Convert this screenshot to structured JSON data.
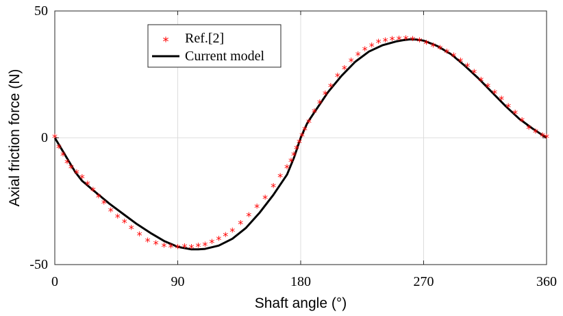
{
  "chart_data": {
    "type": "line",
    "title": "",
    "xlabel": "Shaft angle (°)",
    "ylabel": "Axial friction force (N)",
    "xlim": [
      0,
      360
    ],
    "ylim": [
      -50,
      50
    ],
    "xticks": [
      0,
      90,
      180,
      270,
      360
    ],
    "yticks": [
      -50,
      0,
      50
    ],
    "xtick_labels": [
      "0",
      "90",
      "180",
      "270",
      "360"
    ],
    "ytick_labels": [
      "-50",
      "0",
      "50"
    ],
    "grid": true,
    "legend": {
      "position": "top-left"
    },
    "series": [
      {
        "name": "Ref.[2]",
        "style": "markers",
        "marker": "*",
        "color": "#ff0000",
        "x": [
          0,
          3,
          6,
          9,
          12,
          16,
          20,
          24,
          28,
          32,
          36,
          41,
          46,
          51,
          56,
          62,
          68,
          74,
          80,
          85,
          90,
          95,
          100,
          105,
          110,
          115,
          120,
          125,
          130,
          136,
          142,
          148,
          154,
          160,
          165,
          170,
          173,
          175,
          177,
          179,
          181,
          183,
          186,
          190,
          194,
          198,
          202,
          207,
          212,
          217,
          222,
          227,
          232,
          237,
          242,
          247,
          252,
          257,
          262,
          267,
          272,
          277,
          282,
          287,
          292,
          297,
          302,
          307,
          312,
          317,
          322,
          327,
          332,
          337,
          342,
          347,
          352,
          357,
          360
        ],
        "y": [
          0,
          -4,
          -7,
          -10,
          -12,
          -14,
          -16,
          -18.5,
          -21,
          -23.5,
          -26,
          -29,
          -31.5,
          -33.5,
          -36,
          -38.5,
          -41,
          -42,
          -43,
          -43.2,
          -43.5,
          -43.3,
          -43.5,
          -43,
          -42.5,
          -41.5,
          -40.3,
          -38.8,
          -37,
          -34,
          -31,
          -27.5,
          -24,
          -19.5,
          -15.5,
          -12,
          -9.5,
          -7,
          -4.5,
          -2,
          0.5,
          3,
          6,
          10,
          13.5,
          17,
          20,
          24,
          27,
          30,
          32.5,
          34.5,
          36,
          37.5,
          38,
          38.5,
          38.7,
          38.8,
          38.5,
          38,
          37,
          36,
          35,
          33.5,
          32,
          30,
          28,
          25.5,
          22.5,
          20,
          17.5,
          15,
          12,
          9.5,
          6.5,
          3.5,
          2,
          0.5,
          0
        ]
      },
      {
        "name": "Current model",
        "style": "line",
        "color": "#000000",
        "x": [
          0,
          5,
          10,
          15,
          20,
          30,
          40,
          50,
          60,
          70,
          80,
          90,
          100,
          105,
          110,
          120,
          130,
          140,
          150,
          160,
          170,
          175,
          180,
          185,
          190,
          200,
          210,
          220,
          230,
          240,
          250,
          255,
          260,
          265,
          270,
          280,
          290,
          300,
          310,
          320,
          330,
          340,
          350,
          360
        ],
        "y": [
          0,
          -4.5,
          -9,
          -13.5,
          -17,
          -21.5,
          -26,
          -30,
          -34,
          -37.5,
          -40.7,
          -43,
          -44,
          -44,
          -43.8,
          -42.5,
          -39.8,
          -35.5,
          -29.5,
          -22.5,
          -14.5,
          -8,
          0,
          6,
          10,
          18,
          24.5,
          30,
          34,
          36.5,
          38,
          38.5,
          38.8,
          38.7,
          38.3,
          36.2,
          33,
          28.5,
          23.5,
          18,
          12.5,
          7.5,
          3.5,
          0
        ]
      }
    ]
  }
}
